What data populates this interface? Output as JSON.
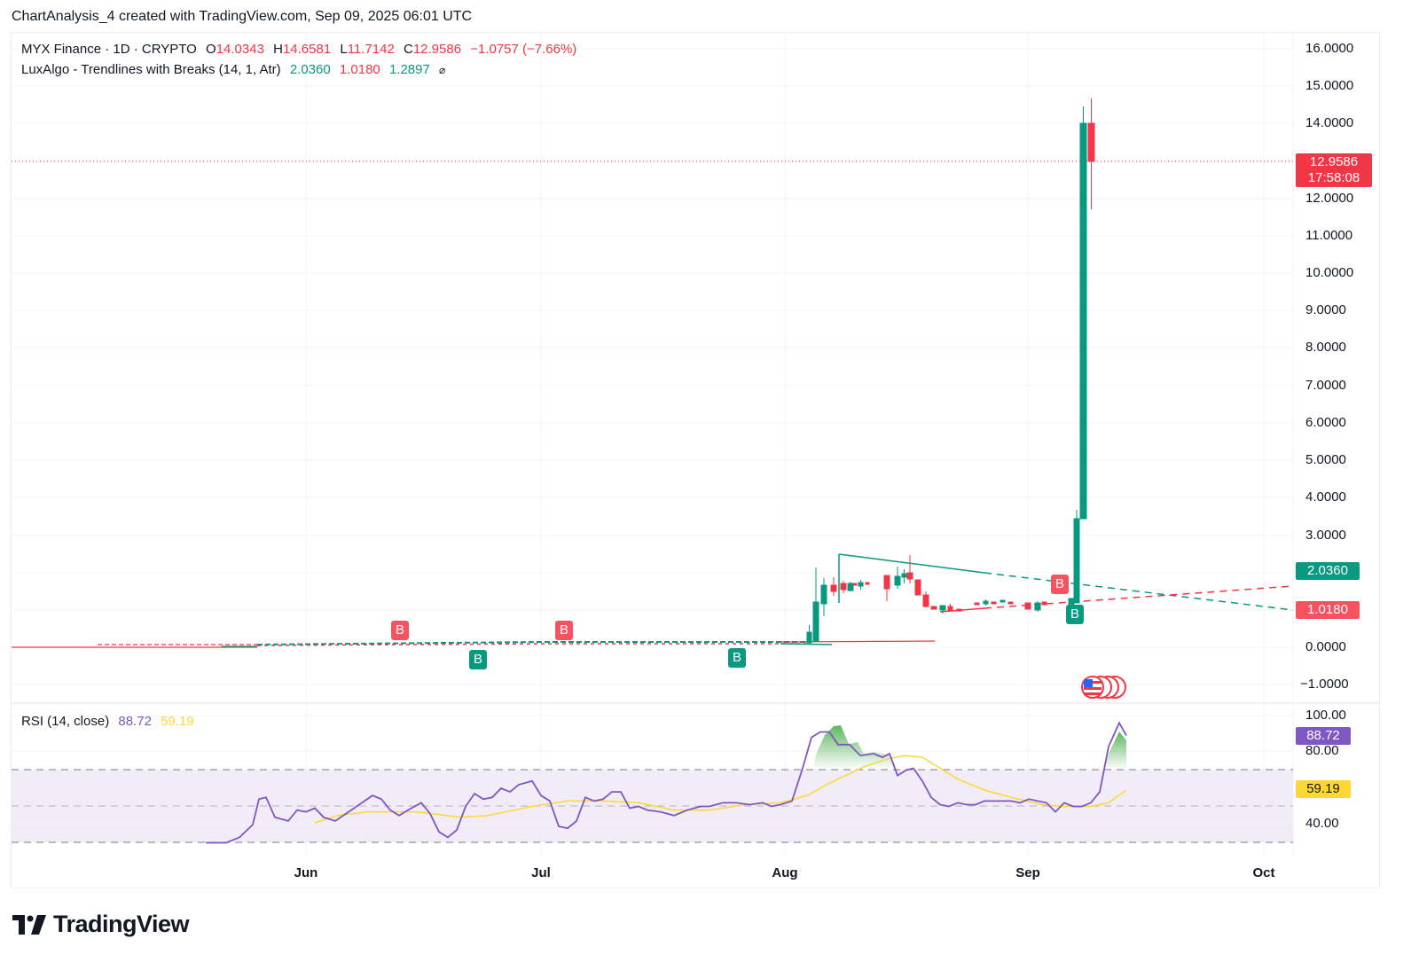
{
  "header": {
    "attribution": "ChartAnalysis_4 created with TradingView.com, Sep 09, 2025 06:01 UTC"
  },
  "symbol_legend": {
    "title": "MYX Finance · 1D · CRYPTO",
    "open_label": "O",
    "open": "14.0343",
    "high_label": "H",
    "high": "14.6581",
    "low_label": "L",
    "low": "11.7142",
    "close_label": "C",
    "close": "12.9586",
    "change": "−1.0757 (−7.66%)"
  },
  "indicator_legend": {
    "name": "LuxAlgo - Trendlines with Breaks (14, 1, Atr)",
    "upper": "2.0360",
    "lower": "1.0180",
    "slope": "1.2897",
    "visibility_icon": "⌀"
  },
  "rsi_legend": {
    "name": "RSI (14, close)",
    "rsi": "88.72",
    "ma": "59.19"
  },
  "price_axis": {
    "ticks": [
      "16.0000",
      "15.0000",
      "14.0000",
      "12.0000",
      "11.0000",
      "10.0000",
      "9.0000",
      "8.0000",
      "7.0000",
      "6.0000",
      "5.0000",
      "4.0000",
      "3.0000",
      "0.0000",
      "−1.0000"
    ],
    "last_price": "12.9586",
    "countdown": "17:58:08",
    "upper_trend_tag": "2.0360",
    "lower_trend_tag": "1.0180"
  },
  "rsi_axis": {
    "ticks": [
      "100.00",
      "80.00",
      "40.00"
    ],
    "rsi_tag": "88.72",
    "ma_tag": "59.19"
  },
  "time_axis": {
    "months": [
      "Jun",
      "Jul",
      "Aug",
      "Sep",
      "Oct"
    ]
  },
  "signals": {
    "break_label": "B"
  },
  "logo": {
    "text": "TradingView"
  },
  "colors": {
    "up": "#089981",
    "down": "#f23645",
    "rsi": "#7e57c2",
    "rsi_ma": "#fdd835",
    "break_down": "#f7525f",
    "break_up": "#089981"
  },
  "chart_data": [
    {
      "type": "candlestick",
      "title": "MYX Finance · 1D · CRYPTO",
      "ylim": [
        -1.5,
        16.5
      ],
      "yticks": [
        16,
        15,
        14,
        12,
        11,
        10,
        9,
        8,
        7,
        6,
        5,
        4,
        3,
        0,
        -1
      ],
      "x_ticks": [
        "Jun",
        "Jul",
        "Aug",
        "Sep",
        "Oct"
      ],
      "last_candle": {
        "open": 14.0343,
        "high": 14.6581,
        "low": 11.7142,
        "close": 12.9586
      },
      "approx_closes": {
        "May": 0.05,
        "Jun": 0.1,
        "Jul": 0.12,
        "Aug 04": 0.3,
        "Aug 05": 1.0,
        "Aug 06": 1.6,
        "Aug 07": 1.7,
        "Aug 15": 2.0,
        "Aug 17": 1.9,
        "Aug 20": 1.1,
        "Aug 25": 1.2,
        "Sep 05": 1.1,
        "Sep 06": 1.2,
        "Sep 07": 3.5,
        "Sep 08": 14.03,
        "Sep 09": 12.96
      },
      "indicators": {
        "trendline_upper": 2.036,
        "trendline_lower": 1.018,
        "slope": 1.2897,
        "breaks": [
          {
            "date": "mid-Jun",
            "type": "down",
            "label": "B"
          },
          {
            "date": "late-Jun",
            "type": "up",
            "label": "B"
          },
          {
            "date": "early-Jul",
            "type": "down",
            "label": "B"
          },
          {
            "date": "late-Jul",
            "type": "up",
            "label": "B"
          },
          {
            "date": "Sep 05",
            "type": "down",
            "label": "B"
          },
          {
            "date": "Sep 07",
            "type": "up",
            "label": "B"
          }
        ]
      }
    },
    {
      "type": "line",
      "title": "RSI (14, close)",
      "ylim": [
        25,
        105
      ],
      "yticks": [
        100,
        80,
        40
      ],
      "bands": {
        "upper": 70,
        "middle": 50,
        "lower": 30
      },
      "series": [
        {
          "name": "RSI",
          "color": "#7e57c2",
          "last": 88.72,
          "points": [
            [
              232,
              30
            ],
            [
              255,
              30
            ],
            [
              270,
              33
            ],
            [
              285,
              40
            ],
            [
              292,
              54
            ],
            [
              300,
              55
            ],
            [
              310,
              44
            ],
            [
              325,
              42
            ],
            [
              335,
              48
            ],
            [
              345,
              47
            ],
            [
              355,
              49
            ],
            [
              365,
              44
            ],
            [
              378,
              42
            ],
            [
              390,
              46
            ],
            [
              405,
              51
            ],
            [
              420,
              56
            ],
            [
              430,
              54
            ],
            [
              440,
              48
            ],
            [
              450,
              45
            ],
            [
              460,
              48
            ],
            [
              475,
              52
            ],
            [
              485,
              46
            ],
            [
              495,
              36
            ],
            [
              505,
              33
            ],
            [
              515,
              37
            ],
            [
              525,
              50
            ],
            [
              535,
              57
            ],
            [
              545,
              54
            ],
            [
              555,
              55
            ],
            [
              565,
              60
            ],
            [
              575,
              58
            ],
            [
              585,
              62
            ],
            [
              600,
              64
            ],
            [
              610,
              56
            ],
            [
              620,
              53
            ],
            [
              630,
              39
            ],
            [
              640,
              38
            ],
            [
              650,
              42
            ],
            [
              660,
              55
            ],
            [
              670,
              53
            ],
            [
              680,
              54
            ],
            [
              690,
              58
            ],
            [
              700,
              58
            ],
            [
              710,
              49
            ],
            [
              720,
              50
            ],
            [
              730,
              48
            ],
            [
              745,
              47
            ],
            [
              760,
              45
            ],
            [
              775,
              48
            ],
            [
              790,
              50
            ],
            [
              800,
              50
            ],
            [
              815,
              52
            ],
            [
              830,
              52
            ],
            [
              845,
              51
            ],
            [
              860,
              52
            ],
            [
              870,
              50
            ],
            [
              880,
              51
            ],
            [
              893,
              53
            ],
            [
              905,
              71
            ],
            [
              915,
              88
            ],
            [
              925,
              91
            ],
            [
              935,
              91
            ],
            [
              945,
              84
            ],
            [
              958,
              84
            ],
            [
              970,
              78
            ],
            [
              985,
              79
            ],
            [
              995,
              77
            ],
            [
              1003,
              79
            ],
            [
              1012,
              67
            ],
            [
              1022,
              70
            ],
            [
              1030,
              71
            ],
            [
              1040,
              64
            ],
            [
              1050,
              55
            ],
            [
              1060,
              51
            ],
            [
              1070,
              50
            ],
            [
              1080,
              52
            ],
            [
              1090,
              51
            ],
            [
              1100,
              51
            ],
            [
              1110,
              53
            ],
            [
              1125,
              53
            ],
            [
              1140,
              53
            ],
            [
              1150,
              52
            ],
            [
              1160,
              54
            ],
            [
              1170,
              53
            ],
            [
              1180,
              52
            ],
            [
              1190,
              47
            ],
            [
              1200,
              52
            ],
            [
              1210,
              50
            ],
            [
              1220,
              50
            ],
            [
              1230,
              52
            ],
            [
              1240,
              58
            ],
            [
              1250,
              83
            ],
            [
              1262,
              96
            ],
            [
              1270,
              89
            ]
          ]
        },
        {
          "name": "RSI-based MA",
          "color": "#fdd835",
          "last": 59.19,
          "points": [
            [
              355,
              41
            ],
            [
              380,
              45
            ],
            [
              415,
              47
            ],
            [
              470,
              47
            ],
            [
              520,
              44
            ],
            [
              550,
              45
            ],
            [
              600,
              50
            ],
            [
              640,
              53
            ],
            [
              680,
              53
            ],
            [
              720,
              52
            ],
            [
              760,
              48
            ],
            [
              800,
              48
            ],
            [
              840,
              51
            ],
            [
              880,
              52
            ],
            [
              910,
              56
            ],
            [
              940,
              64
            ],
            [
              975,
              72
            ],
            [
              1000,
              76
            ],
            [
              1020,
              78
            ],
            [
              1040,
              77
            ],
            [
              1060,
              71
            ],
            [
              1080,
              65
            ],
            [
              1110,
              59
            ],
            [
              1140,
              55
            ],
            [
              1175,
              51
            ],
            [
              1200,
              50
            ],
            [
              1230,
              50
            ],
            [
              1250,
              52
            ],
            [
              1270,
              59
            ]
          ]
        }
      ]
    }
  ]
}
